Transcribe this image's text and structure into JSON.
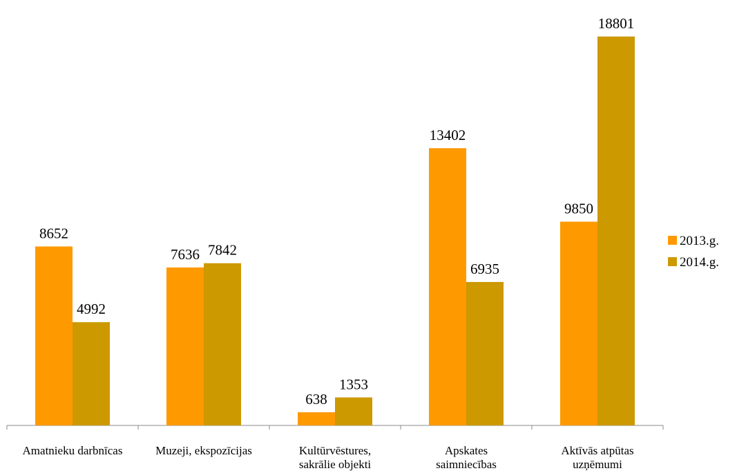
{
  "chart_data": {
    "type": "bar",
    "title": "",
    "xlabel": "",
    "ylabel": "",
    "categories": [
      [
        "Amatnieku darbnīcas"
      ],
      [
        "Muzeji, ekspozīcijas"
      ],
      [
        "Kultūrvēstures,",
        "sakrālie objekti"
      ],
      [
        "Apskates",
        "saimniecības"
      ],
      [
        "Aktīvās atpūtas",
        "uzņēmumi"
      ]
    ],
    "series": [
      {
        "name": "2013.g.",
        "color": "#FF9900",
        "values": [
          8652,
          7636,
          638,
          13402,
          9850
        ]
      },
      {
        "name": "2014.g.",
        "color": "#CC9900",
        "values": [
          4992,
          7842,
          1353,
          6935,
          18801
        ]
      }
    ],
    "ylim": [
      0,
      20000
    ],
    "grid": false,
    "legend": "right"
  }
}
